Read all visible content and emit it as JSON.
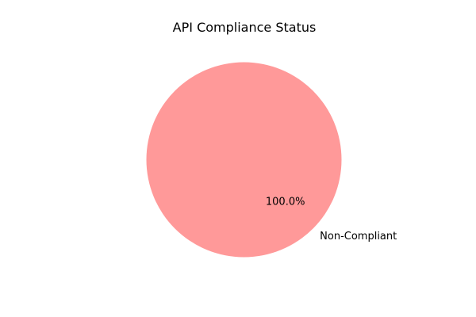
{
  "chart_data": {
    "type": "pie",
    "title": "API Compliance Status",
    "categories": [
      "Non-Compliant"
    ],
    "values": [
      100
    ],
    "percent_labels": [
      "100.0%"
    ],
    "colors": [
      "#ff9999"
    ],
    "legend": "none"
  }
}
